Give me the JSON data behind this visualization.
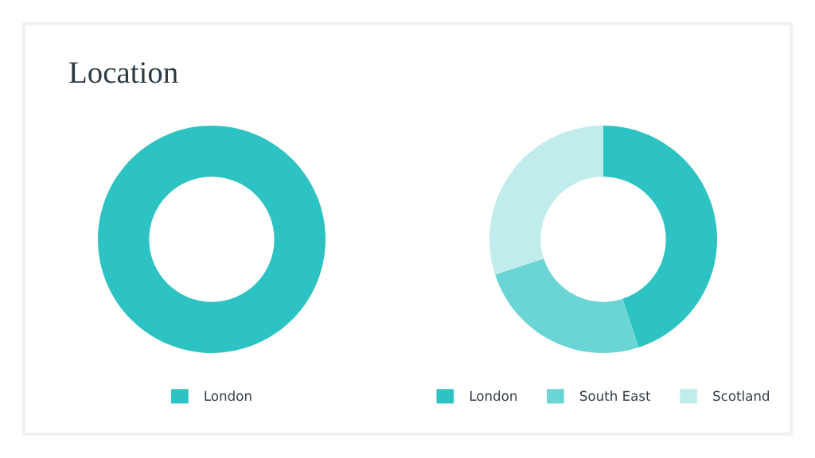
{
  "chart_data": [
    {
      "type": "donut",
      "title": "Location",
      "categories": [
        "London"
      ],
      "values": [
        100
      ],
      "colors": [
        "#2dc3c2"
      ],
      "legend": "bottom"
    },
    {
      "type": "donut",
      "categories": [
        "London",
        "South East",
        "Scotland"
      ],
      "values": [
        45,
        25,
        30
      ],
      "colors": [
        "#2dc3c2",
        "#6bd5d5",
        "#c0ecec"
      ],
      "legend": "bottom"
    }
  ]
}
